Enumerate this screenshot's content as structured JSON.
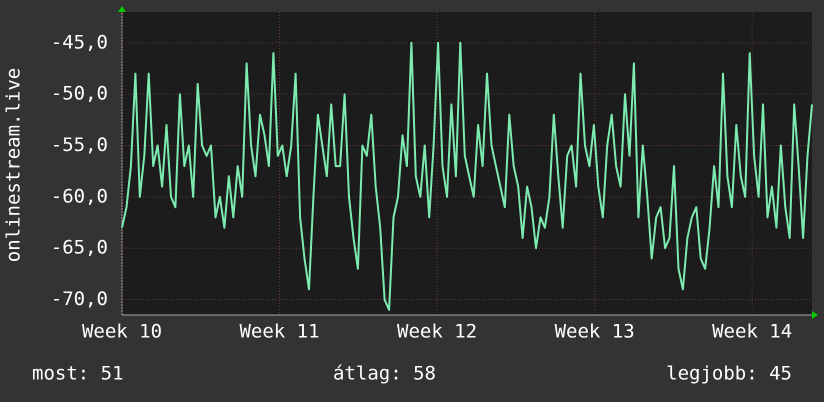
{
  "chart_data": {
    "type": "line",
    "y_axis_label": "onlinestream.live",
    "ylim": [
      -71.5,
      -42
    ],
    "yticks": [
      {
        "value": -45,
        "label": "-45,0"
      },
      {
        "value": -50,
        "label": "-50,0"
      },
      {
        "value": -55,
        "label": "-55,0"
      },
      {
        "value": -60,
        "label": "-60,0"
      },
      {
        "value": -65,
        "label": "-65,0"
      },
      {
        "value": -70,
        "label": "-70,0"
      }
    ],
    "xlim": [
      10,
      14.38
    ],
    "xticks": [
      {
        "value": 10,
        "label": "Week 10"
      },
      {
        "value": 11,
        "label": "Week 11"
      },
      {
        "value": 12,
        "label": "Week 12"
      },
      {
        "value": 13,
        "label": "Week 13"
      },
      {
        "value": 14,
        "label": "Week 14"
      }
    ],
    "grid": true,
    "series": [
      {
        "color": "#7debb0",
        "values": [
          -63,
          -61,
          -57,
          -48,
          -60,
          -56,
          -48,
          -57,
          -55,
          -59,
          -53,
          -60,
          -61,
          -50,
          -57,
          -55,
          -60,
          -49,
          -55,
          -56,
          -55,
          -62,
          -60,
          -63,
          -58,
          -62,
          -57,
          -60,
          -47,
          -55,
          -58,
          -52,
          -54,
          -57,
          -46,
          -56,
          -55,
          -58,
          -55,
          -48,
          -62,
          -66,
          -69,
          -60,
          -52,
          -55,
          -58,
          -51,
          -57,
          -57,
          -50,
          -60,
          -64,
          -67,
          -55,
          -56,
          -52,
          -59,
          -63,
          -70,
          -71,
          -62,
          -60,
          -54,
          -57,
          -45,
          -58,
          -60,
          -55,
          -62,
          -55,
          -45,
          -57,
          -60,
          -51,
          -58,
          -45,
          -56,
          -58,
          -60,
          -53,
          -57,
          -48,
          -55,
          -57,
          -59,
          -61,
          -52,
          -57,
          -59,
          -64,
          -59,
          -61,
          -65,
          -62,
          -63,
          -60,
          -52,
          -58,
          -63,
          -56,
          -55,
          -59,
          -48,
          -55,
          -57,
          -53,
          -59,
          -62,
          -55,
          -52,
          -57,
          -59,
          -50,
          -56,
          -47,
          -62,
          -55,
          -60,
          -66,
          -62,
          -61,
          -65,
          -64,
          -57,
          -67,
          -69,
          -64,
          -62,
          -61,
          -66,
          -67,
          -63,
          -57,
          -61,
          -48,
          -58,
          -61,
          -53,
          -58,
          -60,
          -46,
          -56,
          -60,
          -51,
          -62,
          -59,
          -63,
          -55,
          -61,
          -64,
          -51,
          -57,
          -64,
          -56,
          -51
        ]
      }
    ],
    "stats": [
      "most: 51",
      "átlag: 58",
      "legjobb: 45"
    ]
  }
}
